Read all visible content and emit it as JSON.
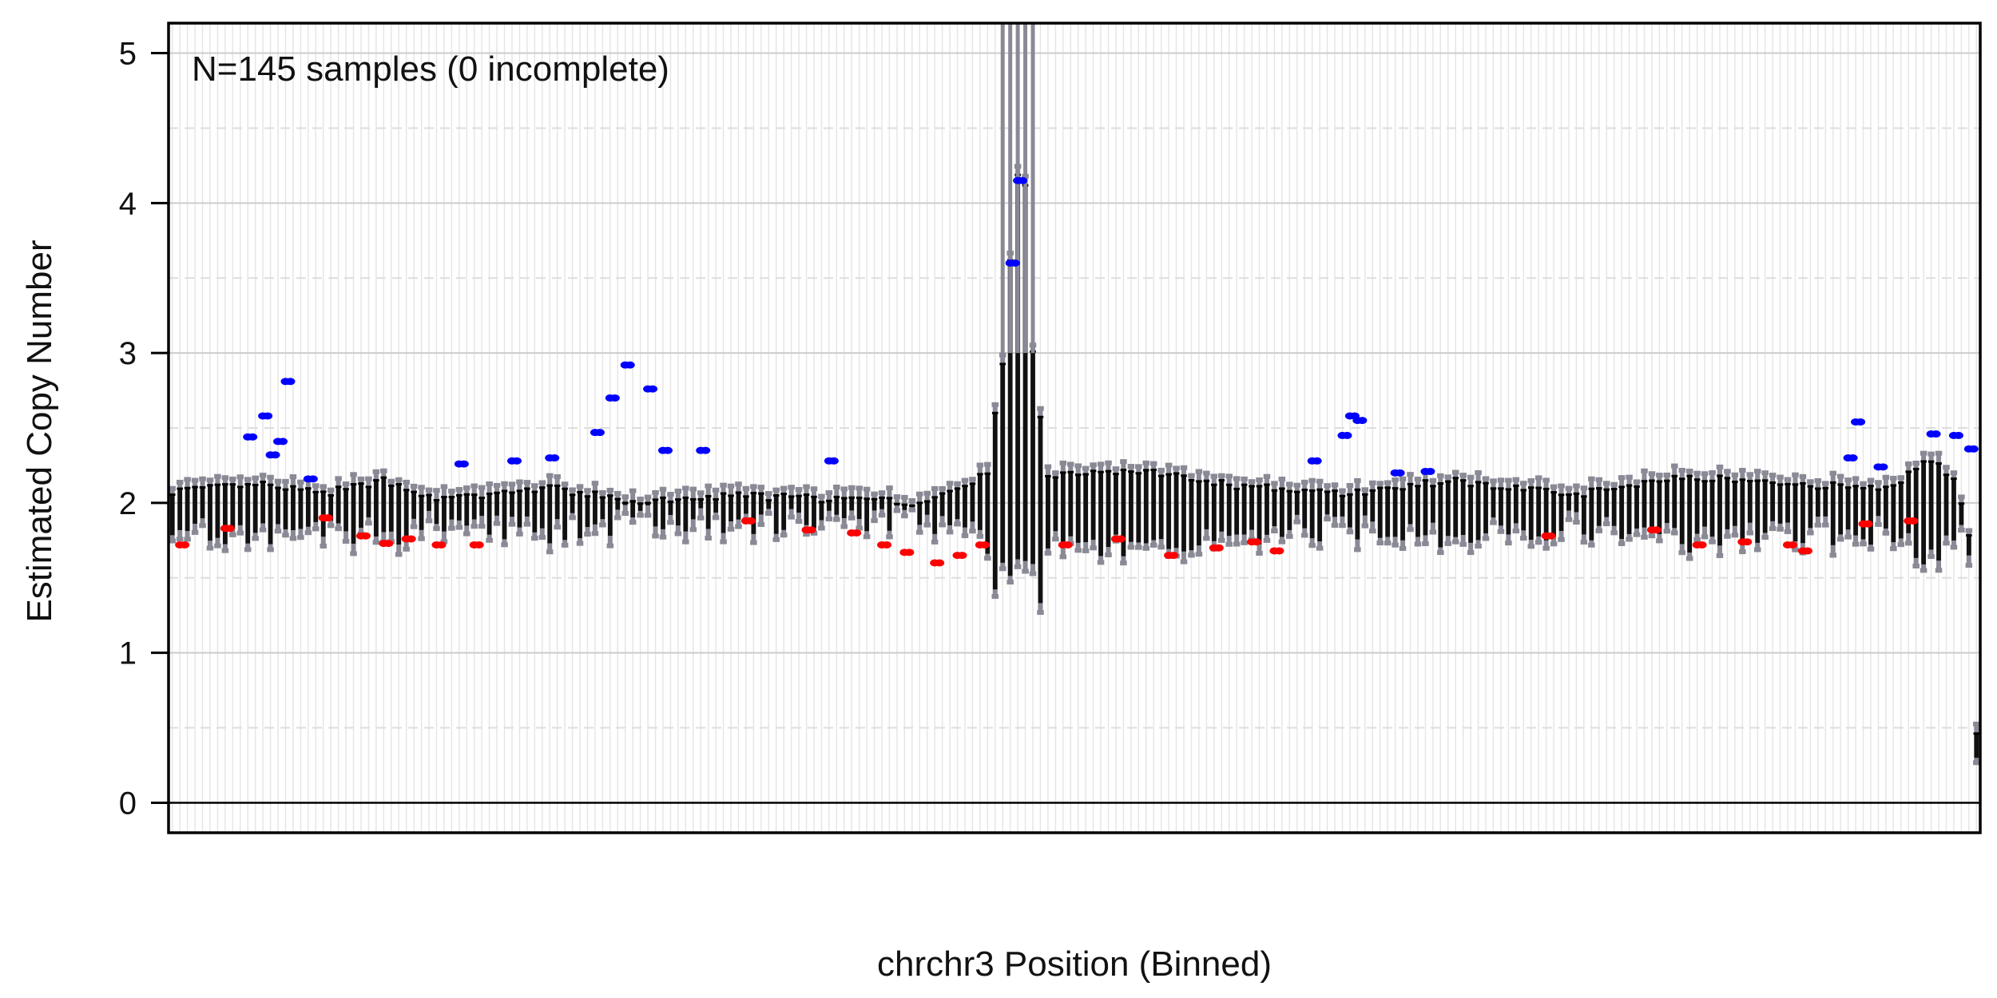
{
  "chart_data": {
    "type": "boxplot",
    "annotation": "N=145 samples (0 incomplete)",
    "xlabel": "chrchr3 Position (Binned)",
    "ylabel": "Estimated Copy Number",
    "ylim": [
      -0.2,
      5.2
    ],
    "yticks": [
      "0",
      "1",
      "2",
      "3",
      "4",
      "5"
    ],
    "grid": true,
    "n_bins": 240,
    "colors": {
      "box": "#111111",
      "whisker_outline": "#8a8a96",
      "gain_outlier": "#0000ff",
      "loss_outlier": "#ff0000",
      "grid_major": "#cccccc",
      "grid_minor": "#dddddd",
      "reference_line": "#000000"
    },
    "profile_points": [
      [
        0,
        2.08
      ],
      [
        12,
        2.12
      ],
      [
        20,
        2.06
      ],
      [
        28,
        2.15
      ],
      [
        36,
        2.02
      ],
      [
        50,
        2.1
      ],
      [
        62,
        2.0
      ],
      [
        75,
        2.05
      ],
      [
        90,
        2.02
      ],
      [
        100,
        2.0
      ],
      [
        105,
        2.12
      ],
      [
        108,
        2.2
      ],
      [
        110,
        2.95
      ],
      [
        111,
        3.6
      ],
      [
        112,
        4.2
      ],
      [
        113,
        4.1
      ],
      [
        114,
        3.0
      ],
      [
        116,
        2.18
      ],
      [
        128,
        2.22
      ],
      [
        140,
        2.12
      ],
      [
        155,
        2.06
      ],
      [
        170,
        2.15
      ],
      [
        185,
        2.05
      ],
      [
        200,
        2.18
      ],
      [
        215,
        2.12
      ],
      [
        228,
        2.1
      ],
      [
        232,
        2.3
      ],
      [
        236,
        2.18
      ],
      [
        238,
        1.8
      ],
      [
        239,
        0.45
      ]
    ],
    "gain_outliers": [
      {
        "bin": 10,
        "value": 2.44
      },
      {
        "bin": 12,
        "value": 2.58
      },
      {
        "bin": 13,
        "value": 2.32
      },
      {
        "bin": 14,
        "value": 2.41
      },
      {
        "bin": 15,
        "value": 2.81
      },
      {
        "bin": 18,
        "value": 2.16
      },
      {
        "bin": 38,
        "value": 2.26
      },
      {
        "bin": 45,
        "value": 2.28
      },
      {
        "bin": 50,
        "value": 2.3
      },
      {
        "bin": 56,
        "value": 2.47
      },
      {
        "bin": 58,
        "value": 2.7
      },
      {
        "bin": 60,
        "value": 2.92
      },
      {
        "bin": 63,
        "value": 2.76
      },
      {
        "bin": 65,
        "value": 2.35
      },
      {
        "bin": 70,
        "value": 2.35
      },
      {
        "bin": 87,
        "value": 2.28
      },
      {
        "bin": 111,
        "value": 3.6
      },
      {
        "bin": 112,
        "value": 4.15
      },
      {
        "bin": 151,
        "value": 2.28
      },
      {
        "bin": 155,
        "value": 2.45
      },
      {
        "bin": 156,
        "value": 2.58
      },
      {
        "bin": 157,
        "value": 2.55
      },
      {
        "bin": 162,
        "value": 2.2
      },
      {
        "bin": 166,
        "value": 2.21
      },
      {
        "bin": 222,
        "value": 2.3
      },
      {
        "bin": 223,
        "value": 2.54
      },
      {
        "bin": 226,
        "value": 2.24
      },
      {
        "bin": 233,
        "value": 2.46
      },
      {
        "bin": 236,
        "value": 2.45
      },
      {
        "bin": 238,
        "value": 2.36
      }
    ],
    "loss_outliers": [
      {
        "bin": 1,
        "value": 1.72
      },
      {
        "bin": 7,
        "value": 1.83
      },
      {
        "bin": 20,
        "value": 1.9
      },
      {
        "bin": 25,
        "value": 1.78
      },
      {
        "bin": 28,
        "value": 1.73
      },
      {
        "bin": 31,
        "value": 1.76
      },
      {
        "bin": 35,
        "value": 1.72
      },
      {
        "bin": 40,
        "value": 1.72
      },
      {
        "bin": 76,
        "value": 1.88
      },
      {
        "bin": 84,
        "value": 1.82
      },
      {
        "bin": 90,
        "value": 1.8
      },
      {
        "bin": 94,
        "value": 1.72
      },
      {
        "bin": 97,
        "value": 1.67
      },
      {
        "bin": 101,
        "value": 1.6
      },
      {
        "bin": 104,
        "value": 1.65
      },
      {
        "bin": 107,
        "value": 1.72
      },
      {
        "bin": 118,
        "value": 1.72
      },
      {
        "bin": 125,
        "value": 1.76
      },
      {
        "bin": 132,
        "value": 1.65
      },
      {
        "bin": 138,
        "value": 1.7
      },
      {
        "bin": 143,
        "value": 1.74
      },
      {
        "bin": 146,
        "value": 1.68
      },
      {
        "bin": 182,
        "value": 1.78
      },
      {
        "bin": 196,
        "value": 1.82
      },
      {
        "bin": 202,
        "value": 1.72
      },
      {
        "bin": 208,
        "value": 1.74
      },
      {
        "bin": 214,
        "value": 1.72
      },
      {
        "bin": 216,
        "value": 1.68
      },
      {
        "bin": 224,
        "value": 1.86
      },
      {
        "bin": 230,
        "value": 1.88
      }
    ]
  }
}
